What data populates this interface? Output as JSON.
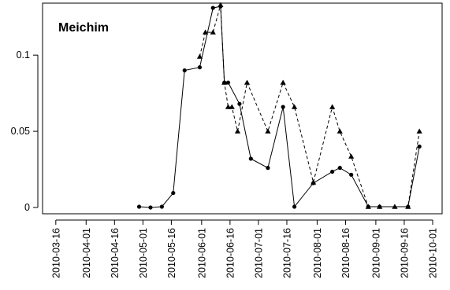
{
  "chart_data": {
    "type": "line",
    "title": "Meichim",
    "xlabel": "",
    "ylabel": "",
    "x_axis_type": "date",
    "xlim": [
      "2010-03-09",
      "2010-10-06"
    ],
    "ylim": [
      0,
      0.13
    ],
    "x_ticks": [
      "2010-03-16",
      "2010-04-01",
      "2010-04-16",
      "2010-05-01",
      "2010-05-16",
      "2010-06-01",
      "2010-06-16",
      "2010-07-01",
      "2010-07-16",
      "2010-08-01",
      "2010-08-16",
      "2010-09-01",
      "2010-09-16",
      "2010-10-01"
    ],
    "y_ticks": [
      0,
      0.05,
      0.1
    ],
    "y_tick_labels": [
      "0",
      "0.05",
      "0.1"
    ],
    "grid": false,
    "legend": "none",
    "series": [
      {
        "line_style": "solid",
        "marker": "circle",
        "color": "#000000",
        "points": [
          [
            "2010-04-29",
            0.0005
          ],
          [
            "2010-05-05",
            0.0
          ],
          [
            "2010-05-11",
            0.0005
          ],
          [
            "2010-05-17",
            0.0095
          ],
          [
            "2010-05-23",
            0.09
          ],
          [
            "2010-05-31",
            0.092
          ],
          [
            "2010-06-07",
            0.131
          ],
          [
            "2010-06-11",
            0.132
          ],
          [
            "2010-06-13",
            0.082
          ],
          [
            "2010-06-15",
            0.082
          ],
          [
            "2010-06-21",
            0.068
          ],
          [
            "2010-06-27",
            0.032
          ],
          [
            "2010-07-06",
            0.026
          ],
          [
            "2010-07-14",
            0.066
          ],
          [
            "2010-07-20",
            0.0005
          ],
          [
            "2010-07-30",
            0.016
          ],
          [
            "2010-08-09",
            0.0235
          ],
          [
            "2010-08-13",
            0.026
          ],
          [
            "2010-08-19",
            0.0215
          ],
          [
            "2010-08-28",
            0.0005
          ],
          [
            "2010-09-03",
            0.0005
          ],
          [
            "2010-09-18",
            0.0005
          ],
          [
            "2010-09-24",
            0.04
          ]
        ]
      },
      {
        "line_style": "dashed",
        "marker": "triangle",
        "color": "#000000",
        "points": [
          [
            "2010-05-31",
            0.099
          ],
          [
            "2010-06-03",
            0.115
          ],
          [
            "2010-06-07",
            0.115
          ],
          [
            "2010-06-11",
            0.133
          ],
          [
            "2010-06-13",
            0.082
          ],
          [
            "2010-06-15",
            0.066
          ],
          [
            "2010-06-17",
            0.066
          ],
          [
            "2010-06-20",
            0.05
          ],
          [
            "2010-06-25",
            0.082
          ],
          [
            "2010-07-06",
            0.05
          ],
          [
            "2010-07-14",
            0.082
          ],
          [
            "2010-07-20",
            0.066
          ],
          [
            "2010-07-30",
            0.0165
          ],
          [
            "2010-08-09",
            0.066
          ],
          [
            "2010-08-13",
            0.05
          ],
          [
            "2010-08-19",
            0.0335
          ],
          [
            "2010-08-28",
            0.0005
          ],
          [
            "2010-09-03",
            0.0005
          ],
          [
            "2010-09-11",
            0.0005
          ],
          [
            "2010-09-18",
            0.0005
          ],
          [
            "2010-09-24",
            0.05
          ]
        ]
      }
    ]
  }
}
